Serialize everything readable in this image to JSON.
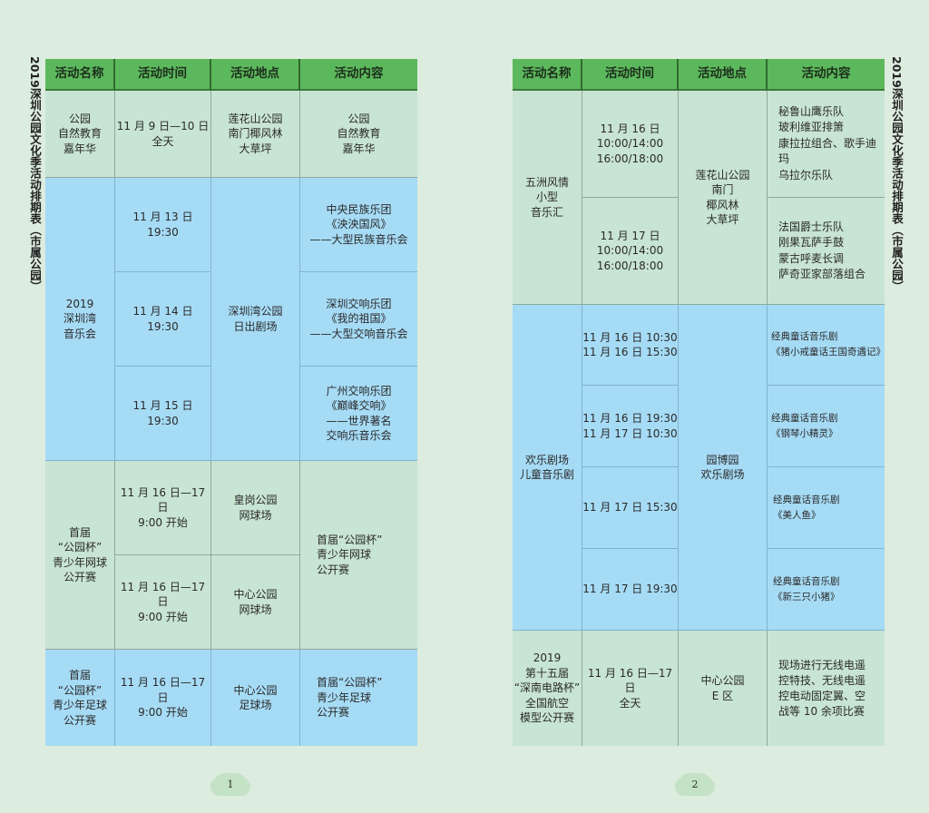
{
  "side_title": "2019深圳公园文化季活动排期表（市属公园）",
  "headers": [
    "活动名称",
    "活动时间",
    "活动地点",
    "活动内容"
  ],
  "page1": {
    "page_number": "1",
    "rows": [
      {
        "name": "公园\n自然教育\n嘉年华",
        "time": "11 月 9 日—10 日\n全天",
        "place": "莲花山公园\n南门椰风林\n大草坪",
        "content": "公园\n自然教育\n嘉年华"
      },
      {
        "name": "2019\n深圳湾\n音乐会",
        "times": [
          "11 月 13 日\n19:30",
          "11 月 14 日\n19:30",
          "11 月 15 日\n19:30"
        ],
        "place": "深圳湾公园\n日出剧场",
        "contents": [
          "中央民族乐团\n《泱泱国风》\n——大型民族音乐会",
          "深圳交响乐团\n《我的祖国》\n——大型交响音乐会",
          "广州交响乐团\n《巅峰交响》\n——世界著名\n交响乐音乐会"
        ]
      },
      {
        "name": "首届\n“公园杯”\n青少年网球\n公开赛",
        "times": [
          "11 月 16 日—17 日\n9:00 开始",
          "11 月 16 日—17 日\n9:00 开始"
        ],
        "places": [
          "皇岗公园\n网球场",
          "中心公园\n网球场"
        ],
        "content": "首届“公园杯”\n青少年网球\n公开赛"
      },
      {
        "name": "首届\n“公园杯”\n青少年足球\n公开赛",
        "time": "11 月 16 日—17 日\n9:00 开始",
        "place": "中心公园\n足球场",
        "content": "首届“公园杯”\n青少年足球\n公开赛"
      }
    ]
  },
  "page2": {
    "page_number": "2",
    "rows": [
      {
        "name": "五洲风情\n小型\n音乐汇",
        "times": [
          "11 月 16 日\n10:00/14:00\n16:00/18:00",
          "11 月 17 日\n10:00/14:00\n16:00/18:00"
        ],
        "place": "莲花山公园\n南门\n椰风林\n大草坪",
        "contents": [
          "秘鲁山鹰乐队\n玻利维亚排箫\n康拉拉组合、歌手迪玛\n乌拉尔乐队",
          "法国爵士乐队\n刚果瓦萨手鼓\n蒙古呼麦长调\n萨奇亚家部落组合"
        ]
      },
      {
        "name": "欢乐剧场\n儿童音乐剧",
        "times": [
          "11 月 16 日 10:30\n11 月 16 日 15:30",
          "11 月 16 日 19:30\n11 月 17 日 10:30",
          "11 月 17 日 15:30",
          "11 月 17 日 19:30"
        ],
        "place": "园博园\n欢乐剧场",
        "contents": [
          "经典童话音乐剧\n《猪小戒童话王国奇遇记》",
          "经典童话音乐剧\n《钢琴小精灵》",
          "经典童话音乐剧\n《美人鱼》",
          "经典童话音乐剧\n《新三只小猪》"
        ]
      },
      {
        "name": "2019\n第十五届\n“深南电路杯”\n全国航空\n模型公开赛",
        "time": "11 月 16 日—17 日\n全天",
        "place": "中心公园\nE 区",
        "content": "现场进行无线电遥\n控特技、无线电遥\n控电动固定翼、空\n战等 10 余项比赛"
      }
    ]
  },
  "colors": {
    "header": "#5cb85c",
    "green_row": "#c8e4d2",
    "blue_row": "#a6dbf5",
    "background": "#dcecdf"
  }
}
